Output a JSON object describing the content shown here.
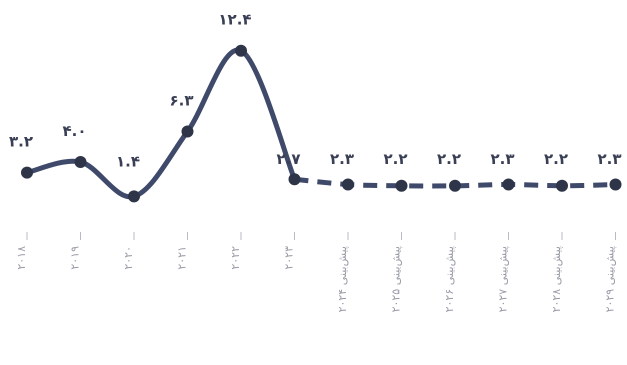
{
  "chart_data": {
    "type": "line",
    "categories": [
      "۲۰۱۸",
      "۲۰۱۹",
      "۲۰۲۰",
      "۲۰۲۱",
      "۲۰۲۲",
      "۲۰۲۳",
      "پیش‌بینی ۲۰۲۴",
      "پیش‌بینی ۲۰۲۵",
      "پیش‌بینی ۲۰۲۶",
      "پیش‌بینی ۲۰۲۷",
      "پیش‌بینی ۲۰۲۸",
      "پیش‌بینی ۲۰۲۹"
    ],
    "values": [
      3.2,
      4.0,
      1.4,
      6.3,
      12.4,
      2.7,
      2.3,
      2.2,
      2.2,
      2.3,
      2.2,
      2.3
    ],
    "data_labels": [
      "۳.۲",
      "۴.۰",
      "۱.۴",
      "۶.۳",
      "۱۲.۴",
      "۲.۷",
      "۲.۳",
      "۲.۲",
      "۲.۲",
      "۲.۳",
      "۲.۲",
      "۲.۳"
    ],
    "actual_count": 6,
    "styles": {
      "actual": "solid",
      "forecast": "dashed"
    },
    "line_color": "#3f4a6b",
    "grid": false,
    "legend": "none",
    "title": "",
    "xlabel": "",
    "ylabel": ""
  }
}
